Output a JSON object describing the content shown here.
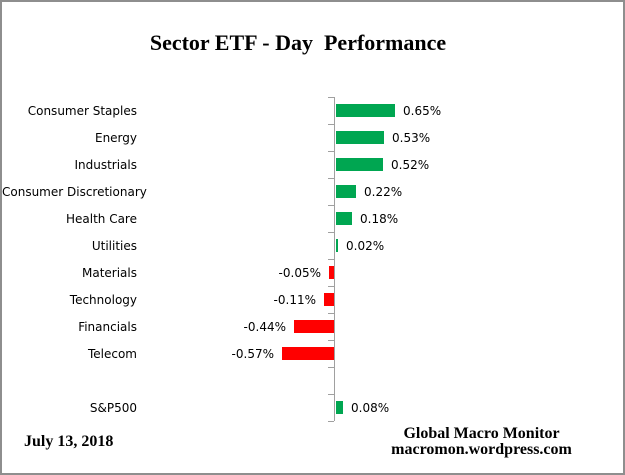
{
  "title": "Sector ETF - Day  Performance",
  "footer": {
    "date": "July 13, 2018",
    "attribution_line1": "Global Macro Monitor",
    "attribution_line2": "macromon.wordpress.com"
  },
  "colors": {
    "positive_bar": "#00A651",
    "negative_bar": "#FF0000",
    "axis": "#A0A0A0"
  },
  "chart_data": {
    "type": "bar",
    "orientation": "horizontal",
    "title": "Sector ETF - Day  Performance",
    "xlabel": "",
    "ylabel": "",
    "legend": "none",
    "value_axis_labels_visible": false,
    "gridlines": false,
    "separator_gap_before_last_category": true,
    "categories": [
      "Consumer Staples",
      "Energy",
      "Industrials",
      "Consumer Discretionary",
      "Health Care",
      "Utilities",
      "Materials",
      "Technology",
      "Financials",
      "Telecom",
      "S&P500"
    ],
    "values": [
      0.65,
      0.53,
      0.52,
      0.22,
      0.18,
      0.02,
      -0.05,
      -0.11,
      -0.44,
      -0.57,
      0.08
    ],
    "value_labels": [
      "0.65%",
      "0.53%",
      "0.52%",
      "0.22%",
      "0.18%",
      "0.02%",
      "-0.05%",
      "-0.11%",
      "-0.44%",
      "-0.57%",
      "0.08%"
    ],
    "unit": "percent"
  }
}
